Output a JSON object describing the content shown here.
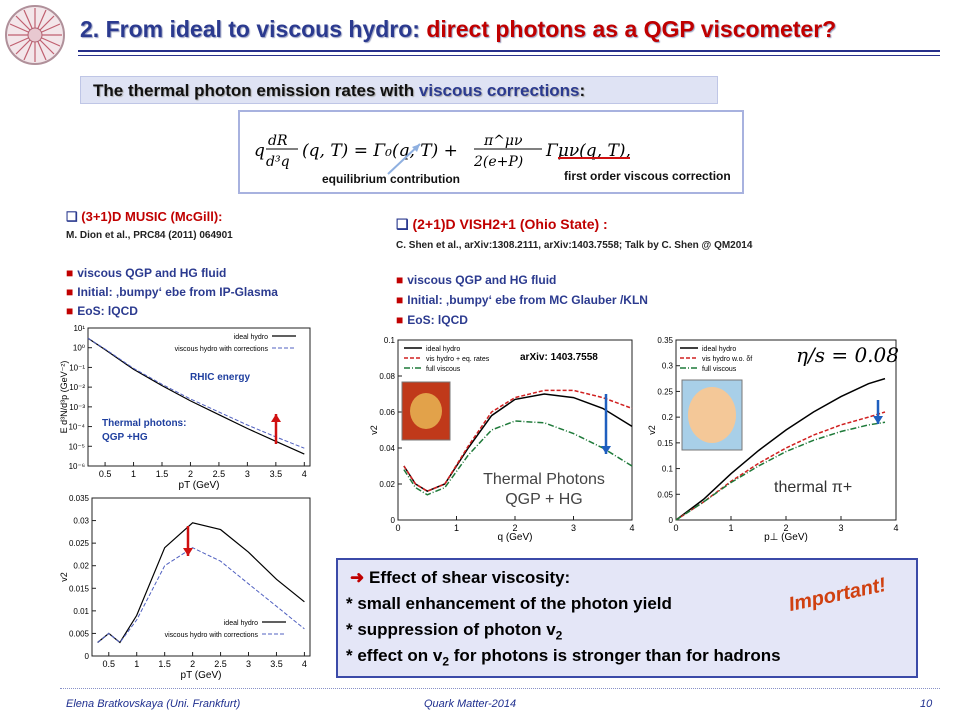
{
  "slide": {
    "title_prefix": "2. From ideal to viscous hydro: ",
    "title_highlight": "direct photons as a QGP viscometer?",
    "subheading_prefix": "The thermal photon emission rates with ",
    "subheading_highlight": "viscous corrections",
    "subheading_suffix": ":",
    "equation": {
      "lhs": "q d³R/d³q (q,T) = Γ₀(q,T) + πᵘᵛ/2(e+P) Γᵘᵛ(q,T),",
      "label_equilibrium": "equilibrium contribution",
      "label_viscous": "first order viscous correction"
    },
    "left": {
      "header": "(3+1)D MUSIC (McGill):",
      "reference": "M. Dion et al., PRC84 (2011) 064901",
      "bullets": [
        "viscous QGP and HG fluid",
        "Initial: ‚bumpy‘ ebe from IP-Glasma",
        "EoS: lQCD"
      ]
    },
    "right": {
      "header": "(2+1)D VISH2+1 (Ohio State) :",
      "reference": "C. Shen et al., arXiv:1308.2111, arXiv:1403.7558; Talk by C. Shen @ QM2014",
      "bullets": [
        "viscous QGP and HG fluid",
        "Initial: ‚bumpy‘ ebe from MC Glauber /KLN",
        "EoS: lQCD"
      ]
    },
    "effect_box": {
      "title": "Effect of shear viscosity:",
      "line1": "* small enhancement of the photon yield",
      "line2_prefix": "* suppression of photon v",
      "line2_sub": "2",
      "line3_prefix": "* effect on v",
      "line3_sub": "2",
      "line3_suffix": " for photons is stronger than for hadrons",
      "stamp": "Important!"
    },
    "footer": {
      "author": "Elena Bratkovskaya  (Uni. Frankfurt)",
      "conference": "Quark Matter-2014",
      "page": "10"
    }
  },
  "colors": {
    "title_blue": "#2b3a8f",
    "red": "#c00000",
    "box_bg": "#e4e6f7",
    "arrow_red": "#d01010",
    "arrow_blue": "#1f5fbf"
  },
  "chart_data": [
    {
      "type": "line",
      "title": "RHIC energy",
      "annotation": "Thermal photons: QGP +HG",
      "xlabel": "pT (GeV)",
      "ylabel": "E d³N/d³p (GeV⁻²)",
      "yscale": "log",
      "xlim": [
        0.2,
        4.1
      ],
      "ylim": [
        1e-06,
        10
      ],
      "xticks": [
        "0.5",
        "1",
        "1.5",
        "2",
        "2.5",
        "3",
        "3.5",
        "4"
      ],
      "yticks": [
        "10⁻⁶",
        "10⁻⁵",
        "10⁻⁴",
        "10⁻³",
        "10⁻²",
        "10⁻¹",
        "10⁰",
        "10¹"
      ],
      "series": [
        {
          "name": "ideal hydro",
          "x": [
            0.2,
            0.5,
            1,
            1.5,
            2,
            2.5,
            3,
            3.5,
            4
          ],
          "y": [
            3,
            0.8,
            0.08,
            0.012,
            0.002,
            0.0004,
            8e-05,
            1.8e-05,
            4e-06
          ]
        },
        {
          "name": "viscous hydro with corrections",
          "x": [
            0.2,
            0.5,
            1,
            1.5,
            2,
            2.5,
            3,
            3.5,
            4
          ],
          "y": [
            3,
            0.85,
            0.09,
            0.014,
            0.0025,
            0.00055,
            0.00012,
            3e-05,
            8e-06
          ]
        }
      ]
    },
    {
      "type": "line",
      "xlabel": "pT (GeV)",
      "ylabel": "v2",
      "xlim": [
        0.2,
        4.1
      ],
      "ylim": [
        0,
        0.035
      ],
      "xticks": [
        "0.5",
        "1",
        "1.5",
        "2",
        "2.5",
        "3",
        "3.5",
        "4"
      ],
      "yticks": [
        "0",
        "0.005",
        "0.01",
        "0.015",
        "0.02",
        "0.025",
        "0.03",
        "0.035"
      ],
      "series": [
        {
          "name": "ideal hydro",
          "x": [
            0.3,
            0.5,
            0.7,
            1,
            1.5,
            2,
            2.5,
            3,
            3.5,
            4
          ],
          "y": [
            0.003,
            0.005,
            0.003,
            0.009,
            0.024,
            0.0295,
            0.028,
            0.023,
            0.017,
            0.012
          ]
        },
        {
          "name": "viscous hydro with corrections",
          "x": [
            0.3,
            0.5,
            0.7,
            1,
            1.5,
            2,
            2.5,
            3,
            3.5,
            4
          ],
          "y": [
            0.003,
            0.005,
            0.003,
            0.008,
            0.02,
            0.024,
            0.021,
            0.016,
            0.011,
            0.006
          ]
        }
      ]
    },
    {
      "type": "line",
      "annotation": "arXiv: 1403.7558",
      "caption_line1": "Thermal Photons",
      "caption_line2": "QGP + HG",
      "xlabel": "q (GeV)",
      "ylabel": "v2",
      "xlim": [
        0,
        4
      ],
      "ylim": [
        0,
        0.1
      ],
      "xticks": [
        "0",
        "1",
        "2",
        "3",
        "4"
      ],
      "yticks": [
        "0",
        "0.02",
        "0.04",
        "0.06",
        "0.08",
        "0.1"
      ],
      "series": [
        {
          "name": "ideal hydro",
          "x": [
            0.1,
            0.3,
            0.5,
            0.8,
            1.2,
            1.6,
            2,
            2.5,
            3,
            3.5,
            4
          ],
          "y": [
            0.03,
            0.02,
            0.016,
            0.02,
            0.04,
            0.058,
            0.067,
            0.07,
            0.068,
            0.062,
            0.052
          ]
        },
        {
          "name": "vis hydro + eq. rates",
          "x": [
            0.1,
            0.3,
            0.5,
            0.8,
            1.2,
            1.6,
            2,
            2.5,
            3,
            3.5,
            4
          ],
          "y": [
            0.03,
            0.02,
            0.016,
            0.02,
            0.041,
            0.06,
            0.068,
            0.072,
            0.072,
            0.068,
            0.062
          ]
        },
        {
          "name": "full viscous",
          "x": [
            0.1,
            0.3,
            0.5,
            0.8,
            1.2,
            1.6,
            2,
            2.5,
            3,
            3.5,
            4
          ],
          "y": [
            0.028,
            0.018,
            0.014,
            0.018,
            0.036,
            0.05,
            0.055,
            0.054,
            0.048,
            0.04,
            0.03
          ]
        }
      ]
    },
    {
      "type": "line",
      "annotation": "η/s = 0.08",
      "caption": "thermal π+",
      "xlabel": "p⊥ (GeV)",
      "ylabel": "v2",
      "xlim": [
        0,
        4
      ],
      "ylim": [
        0,
        0.35
      ],
      "xticks": [
        "0",
        "1",
        "2",
        "3",
        "4"
      ],
      "yticks": [
        "0",
        "0.05",
        "0.1",
        "0.15",
        "0.2",
        "0.25",
        "0.3",
        "0.35"
      ],
      "series": [
        {
          "name": "ideal hydro",
          "x": [
            0,
            0.5,
            1,
            1.5,
            2,
            2.5,
            3,
            3.5,
            3.8
          ],
          "y": [
            0,
            0.04,
            0.09,
            0.135,
            0.175,
            0.21,
            0.24,
            0.265,
            0.275
          ]
        },
        {
          "name": "vis hydro w.o. δf",
          "x": [
            0,
            0.5,
            1,
            1.5,
            2,
            2.5,
            3,
            3.5,
            3.8
          ],
          "y": [
            0,
            0.035,
            0.075,
            0.11,
            0.14,
            0.165,
            0.185,
            0.2,
            0.21
          ]
        },
        {
          "name": "full viscous",
          "x": [
            0,
            0.5,
            1,
            1.5,
            2,
            2.5,
            3,
            3.5,
            3.8
          ],
          "y": [
            0,
            0.035,
            0.073,
            0.105,
            0.133,
            0.155,
            0.172,
            0.185,
            0.19
          ]
        }
      ]
    }
  ]
}
